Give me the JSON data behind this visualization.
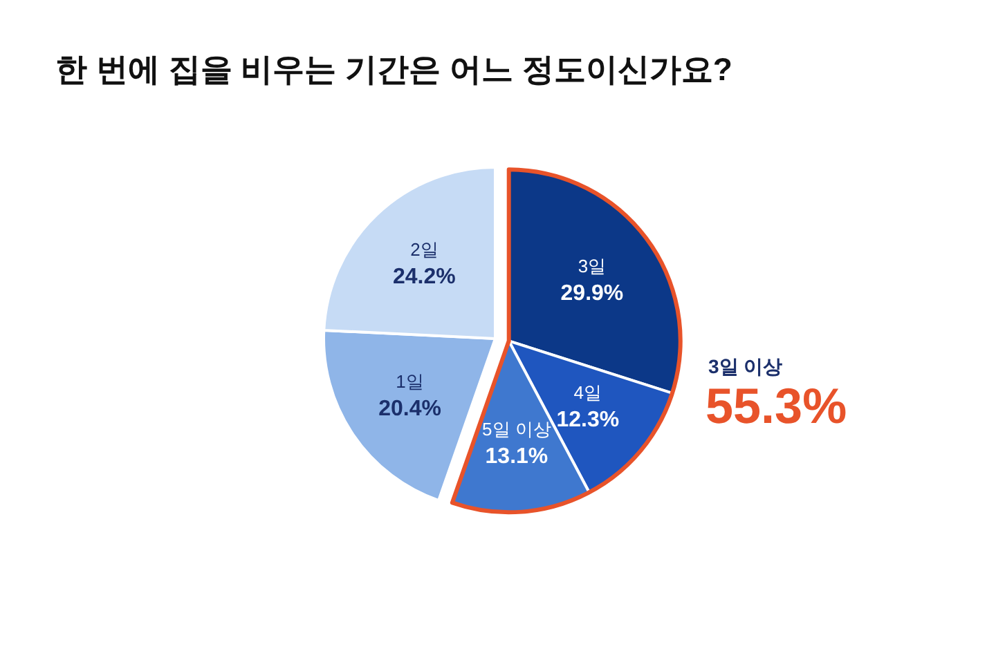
{
  "chart_data": {
    "type": "pie",
    "title": "한 번에 집을 비우는 기간은 어느 정도이신가요?",
    "categories": [
      "3일",
      "4일",
      "5일 이상",
      "1일",
      "2일"
    ],
    "values": [
      29.9,
      12.3,
      13.1,
      20.4,
      24.2
    ],
    "colors": [
      "#0c3888",
      "#1f56bf",
      "#3f78cf",
      "#8fb5e8",
      "#c6dbf5"
    ],
    "value_labels": [
      "29.9%",
      "12.3%",
      "13.1%",
      "20.4%",
      "24.2%"
    ],
    "annotations": [
      "3일 이상",
      "55.3%"
    ]
  }
}
